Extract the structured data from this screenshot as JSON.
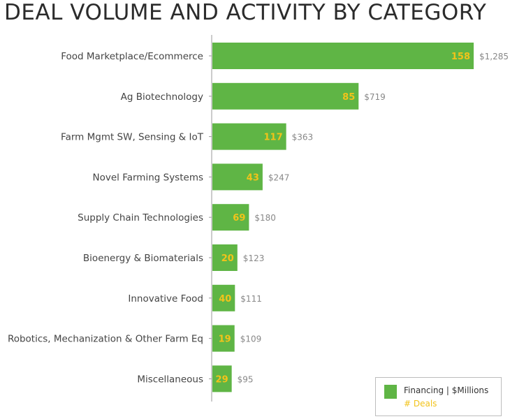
{
  "title": "DEAL VOLUME AND ACTIVITY BY CATEGORY",
  "legend": {
    "financing_label": "Financing | $Millions",
    "deals_label": "# Deals"
  },
  "colors": {
    "bar": "#5fb545",
    "deals_text": "#f2c31a",
    "financing_text": "#888888",
    "axis": "#999999"
  },
  "chart_data": {
    "type": "bar",
    "orientation": "horizontal",
    "title": "DEAL VOLUME AND ACTIVITY BY CATEGORY",
    "categories": [
      "Food Marketplace/Ecommerce",
      "Ag Biotechnology",
      "Farm Mgmt SW, Sensing & IoT",
      "Novel Farming Systems",
      "Supply Chain Technologies",
      "Bioenergy & Biomaterials",
      "Innovative Food",
      "Robotics, Mechanization & Other Farm Eq",
      "Miscellaneous"
    ],
    "series": [
      {
        "name": "Financing | $Millions",
        "values": [
          1285,
          719,
          363,
          247,
          180,
          123,
          111,
          109,
          95
        ],
        "labels": [
          "$1,285",
          "$719",
          "$363",
          "$247",
          "$180",
          "$123",
          "$111",
          "$109",
          "$95"
        ]
      },
      {
        "name": "# Deals",
        "values": [
          158,
          85,
          117,
          43,
          69,
          20,
          40,
          19,
          29
        ]
      }
    ],
    "xlim": [
      0,
      1285
    ],
    "grid": false,
    "legend_position": "bottom-right"
  }
}
